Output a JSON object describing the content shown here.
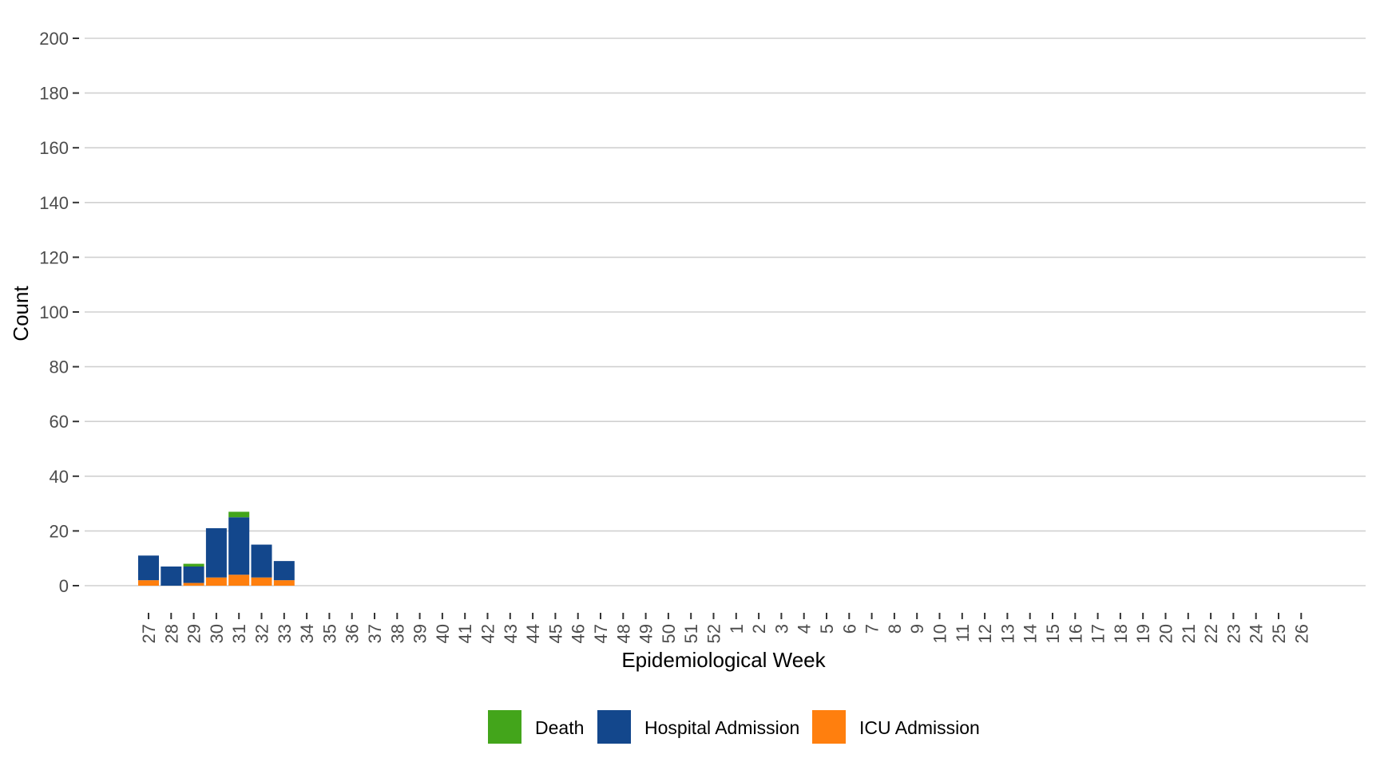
{
  "chart_data": {
    "type": "bar",
    "stacked": true,
    "title": "",
    "xlabel": "Epidemiological Week",
    "ylabel": "Count",
    "ylim": [
      0,
      200
    ],
    "yticks": [
      0,
      20,
      40,
      60,
      80,
      100,
      120,
      140,
      160,
      180,
      200
    ],
    "grid": "horizontal",
    "legend_position": "bottom",
    "categories": [
      "27",
      "28",
      "29",
      "30",
      "31",
      "32",
      "33",
      "34",
      "35",
      "36",
      "37",
      "38",
      "39",
      "40",
      "41",
      "42",
      "43",
      "44",
      "45",
      "46",
      "47",
      "48",
      "49",
      "50",
      "51",
      "52",
      "1",
      "2",
      "3",
      "4",
      "5",
      "6",
      "7",
      "8",
      "9",
      "10",
      "11",
      "12",
      "13",
      "14",
      "15",
      "16",
      "17",
      "18",
      "19",
      "20",
      "21",
      "22",
      "23",
      "24",
      "25",
      "26"
    ],
    "series": [
      {
        "name": "ICU Admission",
        "color": "#ff7f0e",
        "values": [
          2,
          0,
          1,
          3,
          4,
          3,
          2,
          0,
          0,
          0,
          0,
          0,
          0,
          0,
          0,
          0,
          0,
          0,
          0,
          0,
          0,
          0,
          0,
          0,
          0,
          0,
          0,
          0,
          0,
          0,
          0,
          0,
          0,
          0,
          0,
          0,
          0,
          0,
          0,
          0,
          0,
          0,
          0,
          0,
          0,
          0,
          0,
          0,
          0,
          0,
          0,
          0
        ]
      },
      {
        "name": "Hospital Admission",
        "color": "#13478c",
        "values": [
          9,
          7,
          6,
          18,
          21,
          12,
          7,
          0,
          0,
          0,
          0,
          0,
          0,
          0,
          0,
          0,
          0,
          0,
          0,
          0,
          0,
          0,
          0,
          0,
          0,
          0,
          0,
          0,
          0,
          0,
          0,
          0,
          0,
          0,
          0,
          0,
          0,
          0,
          0,
          0,
          0,
          0,
          0,
          0,
          0,
          0,
          0,
          0,
          0,
          0,
          0,
          0
        ]
      },
      {
        "name": "Death",
        "color": "#43a51b",
        "values": [
          0,
          0,
          1,
          0,
          2,
          0,
          0,
          0,
          0,
          0,
          0,
          0,
          0,
          0,
          0,
          0,
          0,
          0,
          0,
          0,
          0,
          0,
          0,
          0,
          0,
          0,
          0,
          0,
          0,
          0,
          0,
          0,
          0,
          0,
          0,
          0,
          0,
          0,
          0,
          0,
          0,
          0,
          0,
          0,
          0,
          0,
          0,
          0,
          0,
          0,
          0,
          0
        ]
      }
    ],
    "legend_order": [
      "Death",
      "Hospital Admission",
      "ICU Admission"
    ]
  }
}
